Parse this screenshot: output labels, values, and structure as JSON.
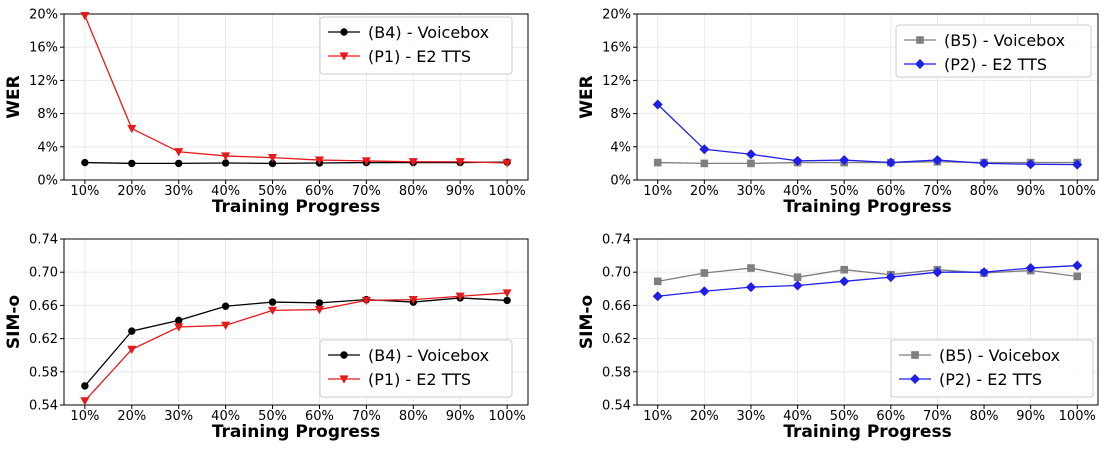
{
  "chart_data": [
    {
      "type": "line",
      "id": "wer-left",
      "xlabel": "Training Progress",
      "ylabel": "WER",
      "categories": [
        "10%",
        "20%",
        "30%",
        "40%",
        "50%",
        "60%",
        "70%",
        "80%",
        "90%",
        "100%"
      ],
      "ylim": [
        0,
        20
      ],
      "yticks": [
        0,
        4,
        8,
        12,
        16,
        20
      ],
      "ytick_labels": [
        "0%",
        "4%",
        "8%",
        "12%",
        "16%",
        "20%"
      ],
      "grid": true,
      "legend_position": "top-right",
      "series": [
        {
          "name": "(B4) - Voicebox",
          "color": "#000000",
          "marker": "circle",
          "values": [
            2.1,
            2.0,
            2.0,
            2.05,
            2.0,
            2.05,
            2.1,
            2.1,
            2.1,
            2.15
          ]
        },
        {
          "name": "(P1) - E2 TTS",
          "color": "#e41a1c",
          "marker": "triangle-down",
          "values": [
            19.8,
            6.2,
            3.4,
            2.9,
            2.7,
            2.4,
            2.3,
            2.2,
            2.2,
            2.05
          ]
        }
      ]
    },
    {
      "type": "line",
      "id": "wer-right",
      "xlabel": "Training Progress",
      "ylabel": "WER",
      "categories": [
        "10%",
        "20%",
        "30%",
        "40%",
        "50%",
        "60%",
        "70%",
        "80%",
        "90%",
        "100%"
      ],
      "ylim": [
        0,
        20
      ],
      "yticks": [
        0,
        4,
        8,
        12,
        16,
        20
      ],
      "ytick_labels": [
        "0%",
        "4%",
        "8%",
        "12%",
        "16%",
        "20%"
      ],
      "grid": true,
      "legend_position": "top-right",
      "series": [
        {
          "name": "(B5) - Voicebox",
          "color": "#7f7f7f",
          "marker": "square",
          "values": [
            2.1,
            2.0,
            2.0,
            2.1,
            2.1,
            2.1,
            2.2,
            2.1,
            2.1,
            2.1
          ]
        },
        {
          "name": "(P2) - E2 TTS",
          "color": "#1f1fe8",
          "marker": "diamond",
          "values": [
            9.1,
            3.7,
            3.1,
            2.3,
            2.4,
            2.1,
            2.4,
            2.0,
            1.9,
            1.85
          ]
        }
      ]
    },
    {
      "type": "line",
      "id": "sim-left",
      "xlabel": "Training Progress",
      "ylabel": "SIM-o",
      "categories": [
        "10%",
        "20%",
        "30%",
        "40%",
        "50%",
        "60%",
        "70%",
        "80%",
        "90%",
        "100%"
      ],
      "ylim": [
        0.54,
        0.74
      ],
      "yticks": [
        0.54,
        0.58,
        0.62,
        0.66,
        0.7,
        0.74
      ],
      "ytick_labels": [
        "0.54",
        "0.58",
        "0.62",
        "0.66",
        "0.70",
        "0.74"
      ],
      "grid": true,
      "legend_position": "bottom-right",
      "series": [
        {
          "name": "(B4) - Voicebox",
          "color": "#000000",
          "marker": "circle",
          "values": [
            0.563,
            0.629,
            0.642,
            0.659,
            0.664,
            0.663,
            0.667,
            0.664,
            0.669,
            0.666
          ]
        },
        {
          "name": "(P1) - E2 TTS",
          "color": "#e41a1c",
          "marker": "triangle-down",
          "values": [
            0.545,
            0.607,
            0.634,
            0.636,
            0.654,
            0.655,
            0.666,
            0.667,
            0.671,
            0.675
          ]
        }
      ]
    },
    {
      "type": "line",
      "id": "sim-right",
      "xlabel": "Training Progress",
      "ylabel": "SIM-o",
      "categories": [
        "10%",
        "20%",
        "30%",
        "40%",
        "50%",
        "60%",
        "70%",
        "80%",
        "90%",
        "100%"
      ],
      "ylim": [
        0.54,
        0.74
      ],
      "yticks": [
        0.54,
        0.58,
        0.62,
        0.66,
        0.7,
        0.74
      ],
      "ytick_labels": [
        "0.54",
        "0.58",
        "0.62",
        "0.66",
        "0.70",
        "0.74"
      ],
      "grid": true,
      "legend_position": "bottom-right",
      "series": [
        {
          "name": "(B5) - Voicebox",
          "color": "#7f7f7f",
          "marker": "square",
          "values": [
            0.689,
            0.699,
            0.705,
            0.694,
            0.703,
            0.697,
            0.703,
            0.699,
            0.702,
            0.695
          ]
        },
        {
          "name": "(P2) - E2 TTS",
          "color": "#1f1fe8",
          "marker": "diamond",
          "values": [
            0.671,
            0.677,
            0.682,
            0.684,
            0.689,
            0.694,
            0.7,
            0.7,
            0.705,
            0.708
          ]
        }
      ]
    }
  ]
}
